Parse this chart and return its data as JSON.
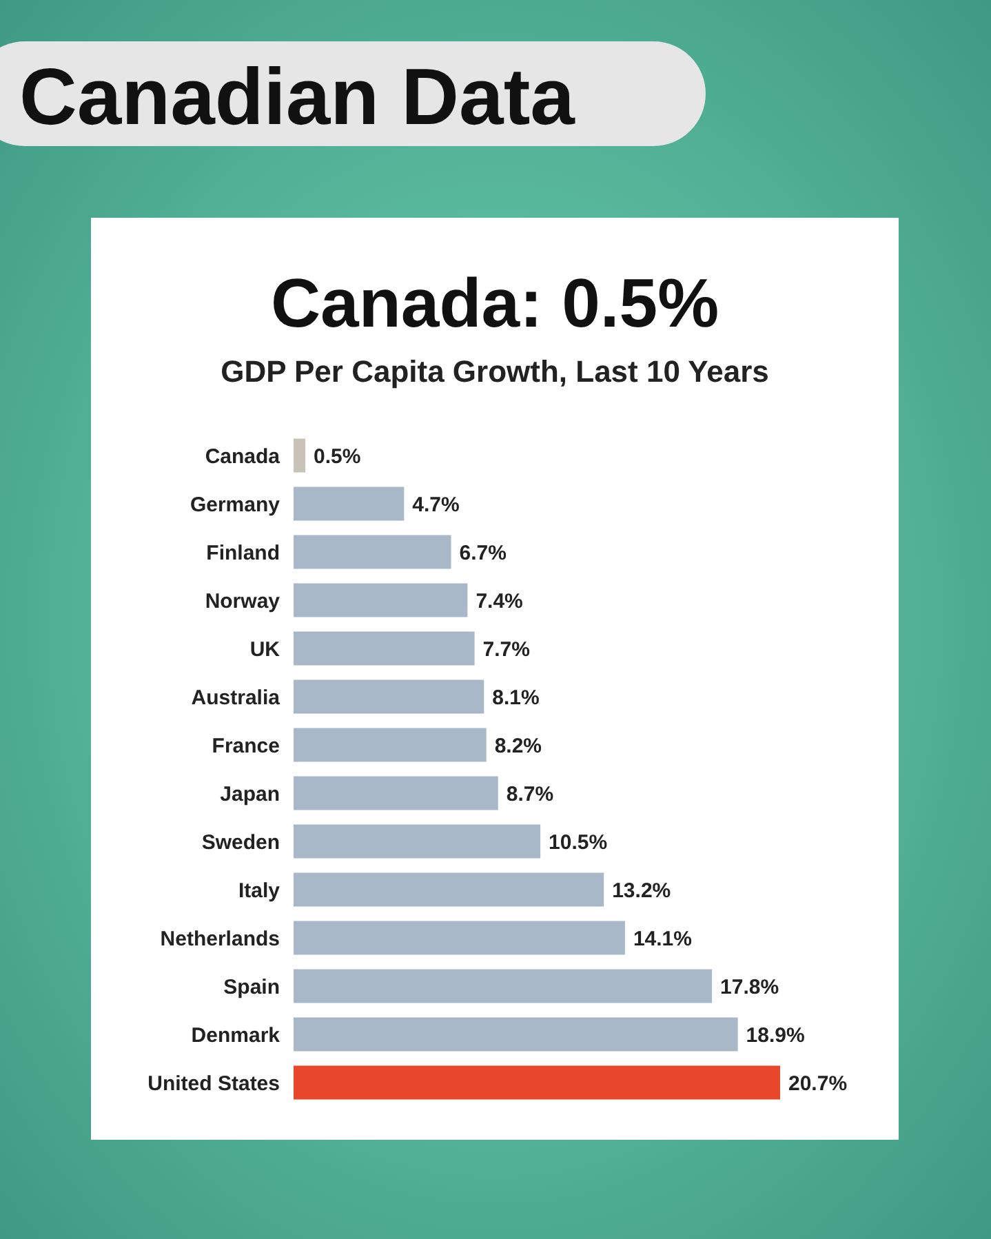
{
  "chart_data": {
    "type": "bar",
    "orientation": "horizontal",
    "title": "Canada: 0.5%",
    "subtitle": "GDP Per Capita Growth, Last 10 Years",
    "annotations": [
      "Canadian Data"
    ],
    "categories": [
      "Canada",
      "Germany",
      "Finland",
      "Norway",
      "UK",
      "Australia",
      "France",
      "Japan",
      "Sweden",
      "Italy",
      "Netherlands",
      "Spain",
      "Denmark",
      "United States"
    ],
    "values": [
      0.5,
      4.7,
      6.7,
      7.4,
      7.7,
      8.1,
      8.2,
      8.7,
      10.5,
      13.2,
      14.1,
      17.8,
      18.9,
      20.7
    ],
    "value_labels": [
      "0.5%",
      "4.7%",
      "6.7%",
      "7.4%",
      "7.7%",
      "8.1%",
      "8.2%",
      "8.7%",
      "10.5%",
      "13.2%",
      "14.1%",
      "17.8%",
      "18.9%",
      "20.7%"
    ],
    "colors": [
      "#c9c2b9",
      "#a9b8c9",
      "#a9b8c9",
      "#a9b8c9",
      "#a9b8c9",
      "#a9b8c9",
      "#a9b8c9",
      "#a9b8c9",
      "#a9b8c9",
      "#a9b8c9",
      "#a9b8c9",
      "#a9b8c9",
      "#a9b8c9",
      "#e8472b"
    ]
  }
}
